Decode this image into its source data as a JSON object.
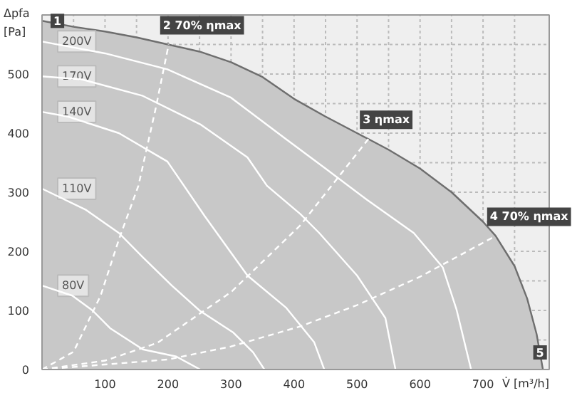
{
  "chart_data": {
    "type": "line",
    "ylabel": "Δpfa [Pa]",
    "xlabel": "V̇ [m³/h]",
    "xlim": [
      0,
      805
    ],
    "ylim": [
      0,
      600
    ],
    "xticks": [
      {
        "value": 50,
        "label": null
      },
      100,
      {
        "value": 150,
        "label": null
      },
      200,
      {
        "value": 250,
        "label": null
      },
      300,
      {
        "value": 350,
        "label": null
      },
      400,
      {
        "value": 450,
        "label": null
      },
      500,
      {
        "value": 550,
        "label": null
      },
      600,
      {
        "value": 650,
        "label": null
      },
      700,
      {
        "value": 750,
        "label": null
      }
    ],
    "yticks": [
      0,
      {
        "value": 50,
        "label": null
      },
      100,
      {
        "value": 150,
        "label": null
      },
      200,
      {
        "value": 250,
        "label": null
      },
      300,
      {
        "value": 350,
        "label": null
      },
      400,
      {
        "value": 450,
        "label": null
      },
      500,
      {
        "value": 550,
        "label": null
      }
    ],
    "grid": true,
    "series": [
      {
        "type": "area",
        "color": "#c8c8c8",
        "x": [
          0,
          50,
          100,
          150,
          200,
          250,
          300,
          350,
          400,
          450,
          500,
          518,
          550,
          600,
          650,
          700,
          720,
          750,
          770,
          785,
          795
        ],
        "values": [
          590,
          580,
          572,
          562,
          550,
          538,
          520,
          495,
          458,
          428,
          400,
          390,
          372,
          340,
          300,
          250,
          226,
          175,
          120,
          60,
          0
        ]
      },
      {
        "name": "200V",
        "color": "#ffffff",
        "x": [
          0,
          100,
          199,
          300,
          387,
          450,
          516,
          590,
          636,
          658,
          681
        ],
        "values": [
          555,
          535,
          508,
          460,
          390,
          340,
          287,
          231,
          173,
          101,
          0
        ]
      },
      {
        "name": "170V",
        "color": "#ffffff",
        "x": [
          0,
          63,
          160,
          251,
          326,
          357,
          410,
          440,
          500,
          545,
          561
        ],
        "values": [
          496,
          491,
          463,
          415,
          359,
          311,
          263,
          231,
          159,
          87,
          0
        ]
      },
      {
        "name": "140V",
        "color": "#ffffff",
        "x": [
          0,
          41,
          122,
          199,
          258,
          326,
          387,
          432,
          448
        ],
        "values": [
          436,
          428,
          400,
          352,
          260,
          159,
          105,
          46,
          0
        ]
      },
      {
        "name": "110V",
        "color": "#ffffff",
        "x": [
          0,
          70,
          122,
          160,
          206,
          251,
          303,
          335,
          353
        ],
        "values": [
          306,
          270,
          231,
          190,
          142,
          99,
          63,
          29,
          0
        ]
      },
      {
        "name": "80V",
        "color": "#ffffff",
        "x": [
          0,
          48,
          80,
          108,
          160,
          213,
          251
        ],
        "values": [
          142,
          125,
          100,
          70,
          34,
          22,
          0
        ]
      },
      {
        "color": "#ffffff",
        "line_style": "dashed",
        "x": [
          0,
          50,
          93,
          122,
          153,
          180,
          201
        ],
        "values": [
          0,
          30,
          125,
          220,
          311,
          440,
          550
        ]
      },
      {
        "color": "#ffffff",
        "line_style": "dashed",
        "x": [
          0,
          100,
          183,
          300,
          410,
          518
        ],
        "values": [
          0,
          15,
          45,
          131,
          244,
          390
        ]
      },
      {
        "color": "#ffffff",
        "line_style": "dashed",
        "x": [
          0,
          200,
          300,
          410,
          500,
          600,
          720
        ],
        "values": [
          0,
          17,
          39,
          73,
          109,
          157,
          226
        ]
      }
    ],
    "annotations": [
      {
        "text": "1",
        "x": 0,
        "y": 590
      },
      {
        "text": "2 70% ηmax",
        "x": 201,
        "y": 550
      },
      {
        "text": "3 ηmax",
        "x": 518,
        "y": 390
      },
      {
        "text": "4 70% ηmax",
        "x": 720,
        "y": 226
      },
      {
        "text": "5",
        "x": 795,
        "y": 0
      }
    ]
  }
}
